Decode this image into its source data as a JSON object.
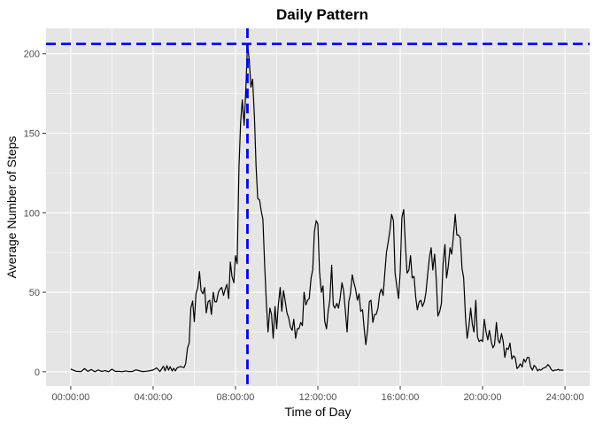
{
  "chart_data": {
    "type": "line",
    "title": "Daily Pattern",
    "xlabel": "Time of Day",
    "ylabel": "Average Number of Steps",
    "x_unit": "hours",
    "xlim": [
      -1.2,
      25.2
    ],
    "ylim": [
      -9,
      216
    ],
    "x_ticks": [
      {
        "value": 0,
        "label": "00:00:00"
      },
      {
        "value": 4,
        "label": "04:00:00"
      },
      {
        "value": 8,
        "label": "08:00:00"
      },
      {
        "value": 12,
        "label": "12:00:00"
      },
      {
        "value": 16,
        "label": "16:00:00"
      },
      {
        "value": 20,
        "label": "20:00:00"
      },
      {
        "value": 24,
        "label": "24:00:00"
      }
    ],
    "y_ticks": [
      {
        "value": 0,
        "label": "0"
      },
      {
        "value": 50,
        "label": "50"
      },
      {
        "value": 100,
        "label": "100"
      },
      {
        "value": 150,
        "label": "150"
      },
      {
        "value": 200,
        "label": "200"
      }
    ],
    "grid": true,
    "background": "#e5e5e5",
    "grid_color": "#ffffff",
    "series": [
      {
        "color": "#000000",
        "points": [
          [
            0.0,
            1.7
          ],
          [
            0.25,
            0.3
          ],
          [
            0.5,
            0.1
          ],
          [
            0.67,
            2.0
          ],
          [
            0.83,
            0.2
          ],
          [
            1.0,
            1.4
          ],
          [
            1.17,
            0.0
          ],
          [
            1.33,
            1.1
          ],
          [
            1.5,
            0.2
          ],
          [
            1.67,
            0.7
          ],
          [
            1.83,
            0.0
          ],
          [
            2.0,
            1.6
          ],
          [
            2.17,
            0.2
          ],
          [
            2.33,
            0.3
          ],
          [
            2.5,
            0.0
          ],
          [
            2.67,
            0.5
          ],
          [
            2.83,
            0.1
          ],
          [
            3.0,
            0.2
          ],
          [
            3.17,
            1.2
          ],
          [
            3.33,
            0.6
          ],
          [
            3.5,
            0.1
          ],
          [
            3.67,
            0.3
          ],
          [
            3.83,
            0.6
          ],
          [
            4.0,
            1.1
          ],
          [
            4.17,
            2.4
          ],
          [
            4.33,
            0.1
          ],
          [
            4.5,
            3.5
          ],
          [
            4.58,
            0.5
          ],
          [
            4.67,
            3.8
          ],
          [
            4.75,
            1.0
          ],
          [
            4.83,
            3.2
          ],
          [
            4.92,
            0.5
          ],
          [
            5.0,
            2.2
          ],
          [
            5.08,
            0.5
          ],
          [
            5.17,
            2.5
          ],
          [
            5.33,
            3.3
          ],
          [
            5.5,
            2.6
          ],
          [
            5.58,
            5.0
          ],
          [
            5.67,
            15.0
          ],
          [
            5.75,
            18.0
          ],
          [
            5.83,
            40.0
          ],
          [
            5.92,
            44.5
          ],
          [
            6.0,
            31.5
          ],
          [
            6.08,
            49.0
          ],
          [
            6.17,
            53.0
          ],
          [
            6.25,
            63.0
          ],
          [
            6.33,
            51.0
          ],
          [
            6.42,
            49.0
          ],
          [
            6.5,
            53.0
          ],
          [
            6.58,
            37.0
          ],
          [
            6.67,
            44.0
          ],
          [
            6.75,
            45.0
          ],
          [
            6.83,
            36.0
          ],
          [
            6.92,
            50.0
          ],
          [
            7.0,
            44.0
          ],
          [
            7.08,
            44.0
          ],
          [
            7.17,
            50.0
          ],
          [
            7.25,
            52.0
          ],
          [
            7.33,
            53.0
          ],
          [
            7.42,
            48.0
          ],
          [
            7.5,
            52.0
          ],
          [
            7.58,
            55.0
          ],
          [
            7.67,
            46.0
          ],
          [
            7.75,
            69.0
          ],
          [
            7.83,
            60.0
          ],
          [
            7.92,
            56.0
          ],
          [
            8.0,
            73.0
          ],
          [
            8.08,
            68.0
          ],
          [
            8.17,
            129.0
          ],
          [
            8.25,
            157.0
          ],
          [
            8.33,
            171.0
          ],
          [
            8.42,
            155.0
          ],
          [
            8.5,
            177.0
          ],
          [
            8.58,
            206.0
          ],
          [
            8.67,
            196.0
          ],
          [
            8.75,
            179.0
          ],
          [
            8.83,
            184.0
          ],
          [
            8.92,
            160.0
          ],
          [
            9.0,
            129.0
          ],
          [
            9.08,
            109.0
          ],
          [
            9.17,
            108.0
          ],
          [
            9.25,
            101.0
          ],
          [
            9.33,
            96.0
          ],
          [
            9.42,
            66.0
          ],
          [
            9.5,
            43.0
          ],
          [
            9.58,
            25.0
          ],
          [
            9.67,
            40.0
          ],
          [
            9.75,
            36.0
          ],
          [
            9.83,
            21.0
          ],
          [
            9.92,
            41.0
          ],
          [
            10.0,
            27.0
          ],
          [
            10.08,
            42.0
          ],
          [
            10.17,
            53.0
          ],
          [
            10.25,
            38.0
          ],
          [
            10.33,
            51.0
          ],
          [
            10.42,
            44.0
          ],
          [
            10.5,
            37.0
          ],
          [
            10.58,
            34.0
          ],
          [
            10.67,
            28.0
          ],
          [
            10.75,
            26.0
          ],
          [
            10.83,
            33.0
          ],
          [
            10.92,
            21.0
          ],
          [
            11.0,
            27.0
          ],
          [
            11.08,
            27.0
          ],
          [
            11.17,
            31.0
          ],
          [
            11.25,
            29.0
          ],
          [
            11.33,
            50.0
          ],
          [
            11.42,
            42.0
          ],
          [
            11.5,
            45.0
          ],
          [
            11.58,
            46.0
          ],
          [
            11.67,
            59.0
          ],
          [
            11.75,
            64.0
          ],
          [
            11.83,
            88.0
          ],
          [
            11.92,
            95.0
          ],
          [
            12.0,
            93.0
          ],
          [
            12.08,
            63.0
          ],
          [
            12.17,
            50.0
          ],
          [
            12.25,
            54.0
          ],
          [
            12.33,
            32.0
          ],
          [
            12.42,
            27.0
          ],
          [
            12.5,
            38.0
          ],
          [
            12.58,
            45.0
          ],
          [
            12.67,
            67.0
          ],
          [
            12.75,
            42.0
          ],
          [
            12.83,
            40.0
          ],
          [
            12.92,
            43.0
          ],
          [
            13.0,
            40.0
          ],
          [
            13.08,
            46.0
          ],
          [
            13.17,
            56.0
          ],
          [
            13.25,
            51.0
          ],
          [
            13.33,
            39.0
          ],
          [
            13.42,
            25.0
          ],
          [
            13.5,
            44.0
          ],
          [
            13.58,
            49.0
          ],
          [
            13.67,
            61.0
          ],
          [
            13.75,
            56.0
          ],
          [
            13.83,
            52.0
          ],
          [
            13.92,
            45.0
          ],
          [
            14.0,
            49.0
          ],
          [
            14.08,
            38.0
          ],
          [
            14.17,
            39.0
          ],
          [
            14.25,
            27.0
          ],
          [
            14.33,
            17.0
          ],
          [
            14.42,
            27.0
          ],
          [
            14.5,
            44.0
          ],
          [
            14.58,
            45.0
          ],
          [
            14.67,
            31.0
          ],
          [
            14.75,
            36.0
          ],
          [
            14.83,
            36.0
          ],
          [
            14.92,
            40.0
          ],
          [
            15.0,
            49.0
          ],
          [
            15.08,
            52.0
          ],
          [
            15.17,
            48.0
          ],
          [
            15.25,
            62.0
          ],
          [
            15.33,
            75.0
          ],
          [
            15.42,
            82.0
          ],
          [
            15.5,
            89.0
          ],
          [
            15.58,
            99.0
          ],
          [
            15.67,
            95.0
          ],
          [
            15.75,
            62.0
          ],
          [
            15.83,
            54.0
          ],
          [
            15.92,
            46.0
          ],
          [
            16.0,
            63.0
          ],
          [
            16.08,
            97.0
          ],
          [
            16.17,
            102.0
          ],
          [
            16.25,
            80.0
          ],
          [
            16.33,
            62.0
          ],
          [
            16.42,
            64.0
          ],
          [
            16.5,
            73.0
          ],
          [
            16.58,
            59.0
          ],
          [
            16.67,
            60.0
          ],
          [
            16.75,
            47.0
          ],
          [
            16.83,
            39.0
          ],
          [
            16.92,
            44.0
          ],
          [
            17.0,
            45.0
          ],
          [
            17.08,
            41.0
          ],
          [
            17.17,
            44.0
          ],
          [
            17.25,
            50.0
          ],
          [
            17.33,
            61.0
          ],
          [
            17.42,
            72.0
          ],
          [
            17.5,
            78.0
          ],
          [
            17.58,
            64.0
          ],
          [
            17.67,
            74.0
          ],
          [
            17.75,
            58.0
          ],
          [
            17.83,
            35.0
          ],
          [
            17.92,
            38.0
          ],
          [
            18.0,
            43.0
          ],
          [
            18.08,
            68.0
          ],
          [
            18.17,
            80.0
          ],
          [
            18.25,
            59.0
          ],
          [
            18.33,
            66.0
          ],
          [
            18.42,
            78.0
          ],
          [
            18.5,
            74.0
          ],
          [
            18.58,
            85.0
          ],
          [
            18.67,
            99.0
          ],
          [
            18.75,
            86.0
          ],
          [
            18.83,
            86.0
          ],
          [
            18.92,
            84.0
          ],
          [
            19.0,
            65.0
          ],
          [
            19.08,
            59.0
          ],
          [
            19.17,
            34.0
          ],
          [
            19.25,
            21.0
          ],
          [
            19.33,
            28.0
          ],
          [
            19.42,
            40.0
          ],
          [
            19.5,
            30.0
          ],
          [
            19.58,
            25.0
          ],
          [
            19.67,
            45.0
          ],
          [
            19.75,
            22.0
          ],
          [
            19.83,
            19.0
          ],
          [
            19.92,
            20.0
          ],
          [
            20.0,
            19.0
          ],
          [
            20.08,
            33.0
          ],
          [
            20.17,
            25.0
          ],
          [
            20.25,
            20.0
          ],
          [
            20.33,
            26.0
          ],
          [
            20.42,
            19.0
          ],
          [
            20.5,
            15.0
          ],
          [
            20.58,
            17.0
          ],
          [
            20.67,
            31.0
          ],
          [
            20.75,
            20.0
          ],
          [
            20.83,
            18.0
          ],
          [
            20.92,
            24.0
          ],
          [
            21.0,
            19.0
          ],
          [
            21.08,
            9.0
          ],
          [
            21.17,
            15.0
          ],
          [
            21.25,
            14.0
          ],
          [
            21.33,
            18.0
          ],
          [
            21.42,
            8.0
          ],
          [
            21.5,
            10.0
          ],
          [
            21.58,
            9.0
          ],
          [
            21.67,
            2.0
          ],
          [
            21.75,
            3.0
          ],
          [
            21.83,
            5.0
          ],
          [
            21.92,
            3.0
          ],
          [
            22.0,
            8.0
          ],
          [
            22.08,
            6.0
          ],
          [
            22.17,
            9.0
          ],
          [
            22.25,
            9.0
          ],
          [
            22.33,
            3.0
          ],
          [
            22.42,
            1.0
          ],
          [
            22.5,
            4.0
          ],
          [
            22.58,
            3.0
          ],
          [
            22.67,
            0.5
          ],
          [
            22.75,
            1.5
          ],
          [
            22.83,
            1.0
          ],
          [
            22.92,
            2.0
          ],
          [
            23.0,
            2.5
          ],
          [
            23.08,
            3.0
          ],
          [
            23.17,
            4.5
          ],
          [
            23.25,
            3.5
          ],
          [
            23.33,
            1.5
          ],
          [
            23.42,
            0.5
          ],
          [
            23.5,
            1.0
          ],
          [
            23.58,
            1.0
          ],
          [
            23.67,
            1.5
          ],
          [
            23.75,
            1.0
          ],
          [
            23.83,
            1.0
          ],
          [
            23.92,
            1.0
          ]
        ]
      }
    ],
    "reference_lines": [
      {
        "orientation": "horizontal",
        "value": 206.2,
        "color": "#0000ff",
        "style": "dashed"
      },
      {
        "orientation": "vertical",
        "value": 8.58,
        "color": "#0000ff",
        "style": "dashed"
      }
    ]
  }
}
